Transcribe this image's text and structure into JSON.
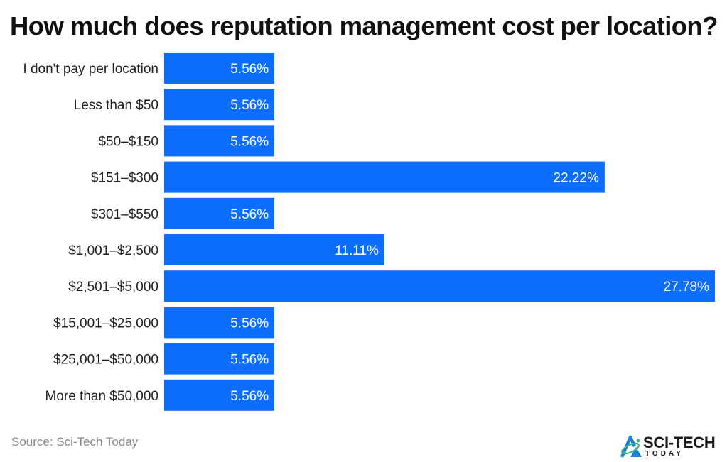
{
  "chart_data": {
    "type": "bar",
    "orientation": "horizontal",
    "title": "How much does reputation management cost per location?",
    "categories": [
      "I don't pay per location",
      "Less than $50",
      "$50–$150",
      "$151–$300",
      "$301–$550",
      "$1,001–$2,500",
      "$2,501–$5,000",
      "$15,001–$25,000",
      "$25,001–$50,000",
      "More than $50,000"
    ],
    "values": [
      5.56,
      5.56,
      5.56,
      22.22,
      5.56,
      11.11,
      27.78,
      5.56,
      5.56,
      5.56
    ],
    "value_labels": [
      "5.56%",
      "5.56%",
      "5.56%",
      "22.22%",
      "5.56%",
      "11.11%",
      "27.78%",
      "5.56%",
      "5.56%",
      "5.56%"
    ],
    "xlim": [
      0,
      27.78
    ],
    "grid": false,
    "legend": "none",
    "bar_color": "#0d6efd"
  },
  "source": "Source: Sci-Tech Today",
  "logo": {
    "wordmark": "SCI-TECH",
    "subtitle": "TODAY",
    "icon": "atom-triangle-icon",
    "colors": {
      "primary": "#1f7ed6",
      "accent": "#3cb58c"
    }
  }
}
